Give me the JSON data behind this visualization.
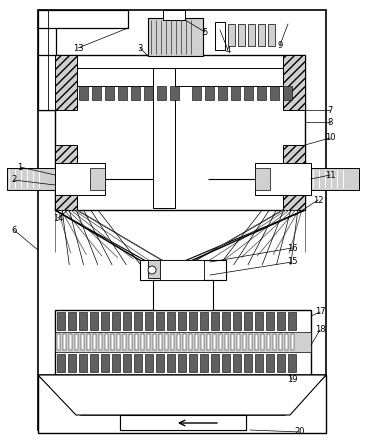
{
  "bg_color": "#ffffff",
  "lc": "#000000",
  "gc": "#b0b0b0",
  "dg": "#606060",
  "lgray": "#d0d0d0"
}
